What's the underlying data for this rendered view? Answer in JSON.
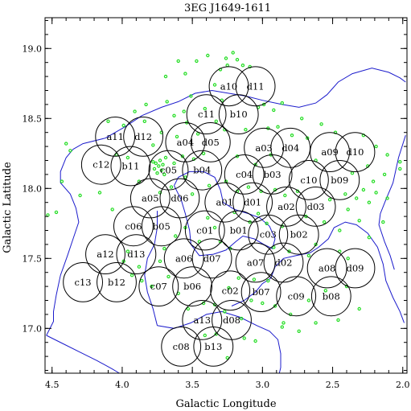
{
  "chart_data": {
    "type": "scatter",
    "title": "3EG J1649-1611",
    "xlabel": "Galactic Longitude",
    "ylabel": "Galactic Latitude",
    "xlim": [
      4.55,
      1.97
    ],
    "ylim": [
      16.68,
      19.22
    ],
    "x_reversed": true,
    "xticks": [
      "4.5",
      "4.0",
      "3.5",
      "3.0",
      "2.5",
      "2.0"
    ],
    "yticks": [
      "17.0",
      "17.5",
      "18.0",
      "18.5",
      "19.0"
    ],
    "pointing_radius_deg": 0.14,
    "pointings": [
      {
        "label": "a10",
        "l": 3.24,
        "b": 18.73
      },
      {
        "label": "d11",
        "l": 3.05,
        "b": 18.73
      },
      {
        "label": "c11",
        "l": 3.4,
        "b": 18.53
      },
      {
        "label": "b10",
        "l": 3.17,
        "b": 18.53
      },
      {
        "label": "a11",
        "l": 4.05,
        "b": 18.37
      },
      {
        "label": "d12",
        "l": 3.85,
        "b": 18.37
      },
      {
        "label": "a04",
        "l": 3.55,
        "b": 18.33
      },
      {
        "label": "d05",
        "l": 3.37,
        "b": 18.33
      },
      {
        "label": "a03",
        "l": 2.99,
        "b": 18.29
      },
      {
        "label": "d04",
        "l": 2.8,
        "b": 18.29
      },
      {
        "label": "a09",
        "l": 2.52,
        "b": 18.26
      },
      {
        "label": "d10",
        "l": 2.34,
        "b": 18.26
      },
      {
        "label": "c12",
        "l": 4.15,
        "b": 18.17
      },
      {
        "label": "b11",
        "l": 3.94,
        "b": 18.16
      },
      {
        "label": "c05",
        "l": 3.67,
        "b": 18.13
      },
      {
        "label": "b04",
        "l": 3.43,
        "b": 18.13
      },
      {
        "label": "c04",
        "l": 3.13,
        "b": 18.1
      },
      {
        "label": "b03",
        "l": 2.93,
        "b": 18.1
      },
      {
        "label": "c10",
        "l": 2.67,
        "b": 18.06
      },
      {
        "label": "b09",
        "l": 2.45,
        "b": 18.06
      },
      {
        "label": "a05",
        "l": 3.8,
        "b": 17.93
      },
      {
        "label": "d06",
        "l": 3.59,
        "b": 17.93
      },
      {
        "label": "a01",
        "l": 3.27,
        "b": 17.9
      },
      {
        "label": "d01",
        "l": 3.07,
        "b": 17.9
      },
      {
        "label": "a02",
        "l": 2.83,
        "b": 17.87
      },
      {
        "label": "d03",
        "l": 2.62,
        "b": 17.87
      },
      {
        "label": "c06",
        "l": 3.92,
        "b": 17.73
      },
      {
        "label": "b05",
        "l": 3.72,
        "b": 17.73
      },
      {
        "label": "c01",
        "l": 3.41,
        "b": 17.7
      },
      {
        "label": "b01",
        "l": 3.17,
        "b": 17.7
      },
      {
        "label": "c03",
        "l": 2.96,
        "b": 17.67
      },
      {
        "label": "b02",
        "l": 2.74,
        "b": 17.67
      },
      {
        "label": "a12",
        "l": 4.12,
        "b": 17.53
      },
      {
        "label": "d13",
        "l": 3.9,
        "b": 17.53
      },
      {
        "label": "a06",
        "l": 3.56,
        "b": 17.5
      },
      {
        "label": "d07",
        "l": 3.36,
        "b": 17.5
      },
      {
        "label": "a07",
        "l": 3.05,
        "b": 17.47
      },
      {
        "label": "d02",
        "l": 2.85,
        "b": 17.47
      },
      {
        "label": "a08",
        "l": 2.54,
        "b": 17.43
      },
      {
        "label": "d09",
        "l": 2.34,
        "b": 17.43
      },
      {
        "label": "c13",
        "l": 4.28,
        "b": 17.33
      },
      {
        "label": "b12",
        "l": 4.04,
        "b": 17.33
      },
      {
        "label": "c07",
        "l": 3.74,
        "b": 17.3
      },
      {
        "label": "b06",
        "l": 3.5,
        "b": 17.3
      },
      {
        "label": "c02",
        "l": 3.23,
        "b": 17.27
      },
      {
        "label": "b07",
        "l": 3.01,
        "b": 17.26
      },
      {
        "label": "c09",
        "l": 2.76,
        "b": 17.23
      },
      {
        "label": "b08",
        "l": 2.51,
        "b": 17.23
      },
      {
        "label": "a13",
        "l": 3.43,
        "b": 17.06
      },
      {
        "label": "d08",
        "l": 3.22,
        "b": 17.06
      },
      {
        "label": "c08",
        "l": 3.58,
        "b": 16.87
      },
      {
        "label": "b13",
        "l": 3.35,
        "b": 16.87
      }
    ],
    "sources": [
      {
        "l": 3.26,
        "b": 18.93
      },
      {
        "l": 3.25,
        "b": 18.88
      },
      {
        "l": 3.21,
        "b": 18.97
      },
      {
        "l": 3.18,
        "b": 18.92
      },
      {
        "l": 3.3,
        "b": 18.85
      },
      {
        "l": 3.47,
        "b": 18.91
      },
      {
        "l": 3.39,
        "b": 18.95
      },
      {
        "l": 3.55,
        "b": 18.82
      },
      {
        "l": 3.6,
        "b": 18.91
      },
      {
        "l": 3.69,
        "b": 18.8
      },
      {
        "l": 3.14,
        "b": 18.88
      },
      {
        "l": 3.09,
        "b": 18.87
      },
      {
        "l": 3.34,
        "b": 18.74
      },
      {
        "l": 3.51,
        "b": 18.66
      },
      {
        "l": 3.68,
        "b": 18.62
      },
      {
        "l": 3.83,
        "b": 18.6
      },
      {
        "l": 3.91,
        "b": 18.55
      },
      {
        "l": 3.63,
        "b": 18.52
      },
      {
        "l": 3.54,
        "b": 18.47
      },
      {
        "l": 3.29,
        "b": 18.63
      },
      {
        "l": 2.99,
        "b": 18.6
      },
      {
        "l": 2.92,
        "b": 18.56
      },
      {
        "l": 2.86,
        "b": 18.61
      },
      {
        "l": 2.89,
        "b": 18.44
      },
      {
        "l": 2.96,
        "b": 18.43
      },
      {
        "l": 3.03,
        "b": 18.58
      },
      {
        "l": 3.12,
        "b": 18.42
      },
      {
        "l": 3.27,
        "b": 18.42
      },
      {
        "l": 3.46,
        "b": 18.39
      },
      {
        "l": 3.61,
        "b": 18.37
      },
      {
        "l": 3.72,
        "b": 18.4
      },
      {
        "l": 3.99,
        "b": 18.45
      },
      {
        "l": 4.1,
        "b": 18.48
      },
      {
        "l": 2.72,
        "b": 18.5
      },
      {
        "l": 2.58,
        "b": 18.46
      },
      {
        "l": 2.48,
        "b": 18.4
      },
      {
        "l": 2.28,
        "b": 18.38
      },
      {
        "l": 2.19,
        "b": 18.3
      },
      {
        "l": 2.11,
        "b": 18.24
      },
      {
        "l": 2.02,
        "b": 18.19
      },
      {
        "l": 2.02,
        "b": 18.14
      },
      {
        "l": 2.13,
        "b": 18.1
      },
      {
        "l": 2.21,
        "b": 18.05
      },
      {
        "l": 2.28,
        "b": 17.99
      },
      {
        "l": 2.19,
        "b": 17.97
      },
      {
        "l": 2.11,
        "b": 17.93
      },
      {
        "l": 2.24,
        "b": 17.9
      },
      {
        "l": 2.33,
        "b": 17.93
      },
      {
        "l": 2.39,
        "b": 17.85
      },
      {
        "l": 2.41,
        "b": 17.96
      },
      {
        "l": 2.52,
        "b": 17.92
      },
      {
        "l": 2.56,
        "b": 17.76
      },
      {
        "l": 2.69,
        "b": 17.8
      },
      {
        "l": 2.75,
        "b": 17.98
      },
      {
        "l": 2.84,
        "b": 17.95
      },
      {
        "l": 2.91,
        "b": 17.99
      },
      {
        "l": 3.01,
        "b": 17.98
      },
      {
        "l": 3.1,
        "b": 18.01
      },
      {
        "l": 3.03,
        "b": 17.82
      },
      {
        "l": 3.09,
        "b": 17.76
      },
      {
        "l": 2.97,
        "b": 17.75
      },
      {
        "l": 2.86,
        "b": 17.73
      },
      {
        "l": 2.92,
        "b": 17.58
      },
      {
        "l": 2.81,
        "b": 17.55
      },
      {
        "l": 2.67,
        "b": 17.52
      },
      {
        "l": 2.62,
        "b": 17.6
      },
      {
        "l": 2.45,
        "b": 17.55
      },
      {
        "l": 2.39,
        "b": 17.5
      },
      {
        "l": 2.4,
        "b": 17.3
      },
      {
        "l": 2.55,
        "b": 17.27
      },
      {
        "l": 2.67,
        "b": 17.2
      },
      {
        "l": 2.8,
        "b": 17.1
      },
      {
        "l": 2.85,
        "b": 17.04
      },
      {
        "l": 2.91,
        "b": 17.16
      },
      {
        "l": 3.0,
        "b": 17.18
      },
      {
        "l": 3.08,
        "b": 17.2
      },
      {
        "l": 3.15,
        "b": 17.07
      },
      {
        "l": 3.27,
        "b": 17.12
      },
      {
        "l": 3.34,
        "b": 17.17
      },
      {
        "l": 3.42,
        "b": 17.18
      },
      {
        "l": 3.53,
        "b": 17.14
      },
      {
        "l": 3.6,
        "b": 17.25
      },
      {
        "l": 3.67,
        "b": 17.37
      },
      {
        "l": 3.73,
        "b": 17.48
      },
      {
        "l": 3.79,
        "b": 17.3
      },
      {
        "l": 3.86,
        "b": 17.34
      },
      {
        "l": 3.7,
        "b": 17.57
      },
      {
        "l": 3.62,
        "b": 17.66
      },
      {
        "l": 3.55,
        "b": 17.72
      },
      {
        "l": 3.45,
        "b": 17.62
      },
      {
        "l": 3.39,
        "b": 17.79
      },
      {
        "l": 3.34,
        "b": 17.72
      },
      {
        "l": 3.3,
        "b": 17.62
      },
      {
        "l": 3.23,
        "b": 17.57
      },
      {
        "l": 3.2,
        "b": 17.83
      },
      {
        "l": 3.18,
        "b": 17.98
      },
      {
        "l": 3.26,
        "b": 18.05
      },
      {
        "l": 3.38,
        "b": 18.02
      },
      {
        "l": 3.5,
        "b": 17.96
      },
      {
        "l": 3.55,
        "b": 18.08
      },
      {
        "l": 3.65,
        "b": 18.01
      },
      {
        "l": 3.73,
        "b": 17.97
      },
      {
        "l": 3.73,
        "b": 18.2
      },
      {
        "l": 3.76,
        "b": 18.18
      },
      {
        "l": 3.74,
        "b": 18.16
      },
      {
        "l": 3.77,
        "b": 18.14
      },
      {
        "l": 3.75,
        "b": 18.11
      },
      {
        "l": 3.71,
        "b": 18.17
      },
      {
        "l": 3.72,
        "b": 18.13
      },
      {
        "l": 3.78,
        "b": 18.19
      },
      {
        "l": 3.7,
        "b": 18.1
      },
      {
        "l": 3.69,
        "b": 18.22
      },
      {
        "l": 3.63,
        "b": 18.18
      },
      {
        "l": 3.57,
        "b": 18.23
      },
      {
        "l": 3.49,
        "b": 18.21
      },
      {
        "l": 3.42,
        "b": 18.25
      },
      {
        "l": 3.96,
        "b": 18.22
      },
      {
        "l": 4.04,
        "b": 18.24
      },
      {
        "l": 3.88,
        "b": 18.05
      },
      {
        "l": 4.37,
        "b": 18.27
      },
      {
        "l": 4.4,
        "b": 18.32
      },
      {
        "l": 4.43,
        "b": 18.05
      },
      {
        "l": 4.53,
        "b": 17.81
      },
      {
        "l": 4.47,
        "b": 17.83
      },
      {
        "l": 4.3,
        "b": 17.95
      },
      {
        "l": 4.16,
        "b": 17.97
      },
      {
        "l": 4.07,
        "b": 17.85
      },
      {
        "l": 3.96,
        "b": 17.55
      },
      {
        "l": 3.88,
        "b": 17.44
      },
      {
        "l": 3.99,
        "b": 17.48
      },
      {
        "l": 3.93,
        "b": 17.38
      },
      {
        "l": 3.33,
        "b": 16.96
      },
      {
        "l": 3.41,
        "b": 16.95
      },
      {
        "l": 3.13,
        "b": 16.93
      },
      {
        "l": 3.05,
        "b": 16.91
      },
      {
        "l": 3.25,
        "b": 16.79
      },
      {
        "l": 2.86,
        "b": 17.01
      },
      {
        "l": 2.74,
        "b": 16.98
      },
      {
        "l": 2.62,
        "b": 17.04
      },
      {
        "l": 2.46,
        "b": 17.06
      },
      {
        "l": 3.17,
        "b": 17.36
      },
      {
        "l": 3.06,
        "b": 17.35
      },
      {
        "l": 3.24,
        "b": 17.29
      },
      {
        "l": 2.96,
        "b": 17.34
      },
      {
        "l": 2.31,
        "b": 17.14
      },
      {
        "l": 2.24,
        "b": 17.65
      },
      {
        "l": 2.31,
        "b": 17.77
      },
      {
        "l": 2.45,
        "b": 17.7
      },
      {
        "l": 2.14,
        "b": 17.76
      },
      {
        "l": 2.25,
        "b": 18.16
      },
      {
        "l": 2.36,
        "b": 18.11
      },
      {
        "l": 2.62,
        "b": 18.2
      },
      {
        "l": 2.68,
        "b": 18.36
      },
      {
        "l": 2.79,
        "b": 18.38
      },
      {
        "l": 2.94,
        "b": 18.24
      },
      {
        "l": 3.05,
        "b": 18.17
      },
      {
        "l": 3.18,
        "b": 18.23
      },
      {
        "l": 3.33,
        "b": 18.48
      },
      {
        "l": 3.41,
        "b": 18.57
      },
      {
        "l": 3.56,
        "b": 18.55
      },
      {
        "l": 3.78,
        "b": 18.31
      },
      {
        "l": 3.84,
        "b": 18.48
      }
    ],
    "contours": [
      [
        [
          4.35,
          18.28
        ],
        [
          4.28,
          18.32
        ],
        [
          4.12,
          18.36
        ],
        [
          3.98,
          18.44
        ],
        [
          3.86,
          18.52
        ],
        [
          3.72,
          18.58
        ],
        [
          3.6,
          18.62
        ],
        [
          3.48,
          18.68
        ],
        [
          3.36,
          18.7
        ],
        [
          3.24,
          18.68
        ],
        [
          3.12,
          18.66
        ],
        [
          3.0,
          18.63
        ],
        [
          2.86,
          18.6
        ],
        [
          2.74,
          18.58
        ],
        [
          2.62,
          18.61
        ],
        [
          2.54,
          18.67
        ],
        [
          2.46,
          18.76
        ],
        [
          2.36,
          18.82
        ],
        [
          2.22,
          18.86
        ],
        [
          2.1,
          18.83
        ],
        [
          2.02,
          18.79
        ],
        [
          1.98,
          18.76
        ]
      ],
      [
        [
          4.35,
          18.28
        ],
        [
          4.4,
          18.22
        ],
        [
          4.44,
          18.12
        ],
        [
          4.44,
          18.04
        ],
        [
          4.37,
          17.96
        ],
        [
          4.33,
          17.86
        ],
        [
          4.31,
          17.76
        ],
        [
          4.35,
          17.64
        ],
        [
          4.39,
          17.52
        ],
        [
          4.44,
          17.38
        ],
        [
          4.47,
          17.24
        ],
        [
          4.49,
          17.12
        ],
        [
          4.49,
          17.05
        ],
        [
          4.54,
          16.95
        ]
      ],
      [
        [
          4.54,
          16.95
        ],
        [
          4.42,
          16.89
        ],
        [
          4.3,
          16.83
        ],
        [
          4.18,
          16.77
        ],
        [
          4.07,
          16.71
        ],
        [
          4.02,
          16.68
        ]
      ],
      [
        [
          3.63,
          18.02
        ],
        [
          3.58,
          17.92
        ],
        [
          3.55,
          17.82
        ],
        [
          3.52,
          17.7
        ],
        [
          3.51,
          17.6
        ],
        [
          3.45,
          17.52
        ],
        [
          3.35,
          17.53
        ],
        [
          3.26,
          17.56
        ],
        [
          3.19,
          17.62
        ],
        [
          3.14,
          17.66
        ],
        [
          3.06,
          17.64
        ],
        [
          2.99,
          17.6
        ],
        [
          2.93,
          17.57
        ],
        [
          2.91,
          17.64
        ],
        [
          2.95,
          17.73
        ],
        [
          3.02,
          17.79
        ],
        [
          3.1,
          17.82
        ],
        [
          3.2,
          17.85
        ],
        [
          3.28,
          17.9
        ],
        [
          3.3,
          17.99
        ],
        [
          3.34,
          18.08
        ],
        [
          3.42,
          18.12
        ],
        [
          3.52,
          18.12
        ],
        [
          3.6,
          18.08
        ],
        [
          3.63,
          18.02
        ]
      ],
      [
        [
          3.75,
          17.84
        ],
        [
          3.75,
          17.72
        ],
        [
          3.77,
          17.6
        ],
        [
          3.82,
          17.5
        ],
        [
          3.84,
          17.38
        ],
        [
          3.82,
          17.26
        ],
        [
          3.78,
          17.14
        ],
        [
          3.75,
          17.02
        ]
      ],
      [
        [
          3.75,
          17.02
        ],
        [
          3.63,
          17.0
        ],
        [
          3.51,
          17.04
        ],
        [
          3.4,
          17.1
        ],
        [
          3.29,
          17.12
        ],
        [
          3.16,
          17.08
        ],
        [
          3.04,
          17.02
        ],
        [
          2.95,
          16.98
        ],
        [
          2.89,
          16.92
        ],
        [
          2.87,
          16.82
        ],
        [
          2.87,
          16.72
        ],
        [
          2.88,
          16.68
        ]
      ],
      [
        [
          2.91,
          17.44
        ],
        [
          2.85,
          17.5
        ],
        [
          2.76,
          17.52
        ],
        [
          2.66,
          17.54
        ],
        [
          2.6,
          17.58
        ],
        [
          2.53,
          17.64
        ],
        [
          2.49,
          17.72
        ],
        [
          2.41,
          17.76
        ],
        [
          2.33,
          17.74
        ],
        [
          2.25,
          17.68
        ],
        [
          2.18,
          17.58
        ],
        [
          2.14,
          17.46
        ],
        [
          2.12,
          17.34
        ],
        [
          2.07,
          17.22
        ],
        [
          2.02,
          17.12
        ],
        [
          1.99,
          17.04
        ]
      ],
      [
        [
          1.98,
          18.38
        ],
        [
          2.03,
          18.22
        ],
        [
          2.07,
          18.04
        ],
        [
          2.12,
          17.92
        ],
        [
          2.16,
          17.82
        ],
        [
          2.17,
          17.74
        ],
        [
          2.13,
          17.62
        ],
        [
          2.09,
          17.52
        ],
        [
          2.06,
          17.42
        ]
      ],
      [
        [
          2.91,
          17.44
        ],
        [
          2.94,
          17.36
        ],
        [
          3.0,
          17.32
        ],
        [
          3.05,
          17.26
        ],
        [
          3.13,
          17.2
        ],
        [
          3.22,
          17.16
        ]
      ]
    ]
  }
}
